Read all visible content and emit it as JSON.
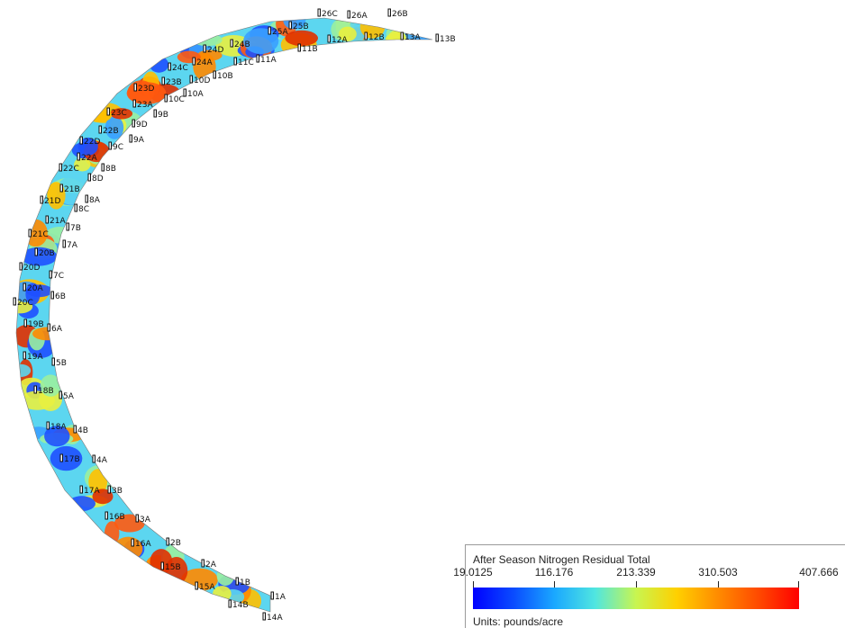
{
  "legend": {
    "title": "After Season Nitrogen Residual Total",
    "ticks": [
      "19.0125",
      "116.176",
      "213.339",
      "310.503",
      "407.666"
    ],
    "units": "Units: pounds/acre",
    "colors": [
      "#0000ff",
      "#0a4cff",
      "#1aa8ff",
      "#50e6e0",
      "#c8f550",
      "#ffd000",
      "#ff8c00",
      "#ff4a00",
      "#ff0000"
    ]
  },
  "map": {
    "field_colors": [
      "#1e50ff",
      "#3aa0ff",
      "#5cd6f0",
      "#9af0a0",
      "#e8f040",
      "#ffc000",
      "#ff8a00",
      "#ff5a10",
      "#e03000"
    ],
    "plots": [
      "1A",
      "1B",
      "2A",
      "2B",
      "3A",
      "3B",
      "4A",
      "4B",
      "5A",
      "5B",
      "6A",
      "6B",
      "7A",
      "7B",
      "7C",
      "8A",
      "8B",
      "8C",
      "8D",
      "9A",
      "9B",
      "9C",
      "9D",
      "10A",
      "10B",
      "10C",
      "10D",
      "11A",
      "11B",
      "11C",
      "12A",
      "12B",
      "13A",
      "13B",
      "14A",
      "14B",
      "15A",
      "15B",
      "16A",
      "16B",
      "17A",
      "17B",
      "18A",
      "18B",
      "19A",
      "19B",
      "20A",
      "20B",
      "20C",
      "20D",
      "21A",
      "21B",
      "21C",
      "21D",
      "22A",
      "22B",
      "22C",
      "22D",
      "23A",
      "23B",
      "23C",
      "23D",
      "24A",
      "24B",
      "24C",
      "24D",
      "25A",
      "25B",
      "26A",
      "26B",
      "26C"
    ]
  }
}
